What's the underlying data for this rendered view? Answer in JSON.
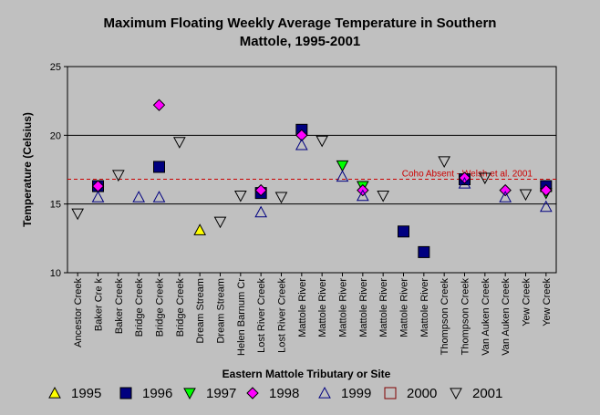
{
  "chart_data": {
    "type": "scatter",
    "title_lines": [
      "Maximum Floating Weekly Average Temperature in Southern",
      "Mattole, 1995-2001"
    ],
    "xlabel": "Eastern Mattole Tributary or Site",
    "ylabel": "Temperature (Celsius)",
    "ylim": [
      10,
      25
    ],
    "yticks": [
      10,
      15,
      20,
      25
    ],
    "grid": "horizontal",
    "legend_position": "bottom",
    "categories": [
      "Ancestor Creek",
      "Baker Cre   k",
      "Baker Creek",
      "Bridge Creek",
      "Bridge Creek",
      "Bridge Creek",
      "Dream Stream",
      "Dream Stream",
      "Helen Barnum Cr",
      "Lost River Creek",
      "Lost River Creek",
      "Mattole River",
      "Mattole River",
      "Mattole River",
      "Mattole River",
      "Mattole River",
      "Mattole River",
      "Mattole River",
      "Thompson Creek",
      "Thompson Creek",
      "Van Auken Creek",
      "Van Auken Creek",
      "Yew Creek",
      "Yew Creek"
    ],
    "reference_line": {
      "value": 16.8,
      "label": "Coho Absent - Welsh et al. 2001",
      "color": "#cc0000"
    },
    "series": [
      {
        "name": "1995",
        "marker": "triangle-up",
        "fill": "#ffff00",
        "points": [
          {
            "x": 6,
            "y": 13.1
          }
        ]
      },
      {
        "name": "1996",
        "marker": "square",
        "fill": "#000080",
        "points": [
          {
            "x": 1,
            "y": 16.3
          },
          {
            "x": 4,
            "y": 17.7
          },
          {
            "x": 9,
            "y": 15.8
          },
          {
            "x": 11,
            "y": 20.4
          },
          {
            "x": 16,
            "y": 13.0
          },
          {
            "x": 17,
            "y": 11.5
          },
          {
            "x": 19,
            "y": 16.8
          },
          {
            "x": 23,
            "y": 16.3
          }
        ]
      },
      {
        "name": "1997",
        "marker": "triangle-down",
        "fill": "#00ff00",
        "points": [
          {
            "x": 13,
            "y": 17.8
          },
          {
            "x": 14,
            "y": 16.3
          },
          {
            "x": 23,
            "y": 15.8
          }
        ]
      },
      {
        "name": "1998",
        "marker": "diamond",
        "fill": "#ff00ff",
        "points": [
          {
            "x": 1,
            "y": 16.3
          },
          {
            "x": 4,
            "y": 22.2
          },
          {
            "x": 9,
            "y": 16.0
          },
          {
            "x": 11,
            "y": 20.0
          },
          {
            "x": 14,
            "y": 16.0
          },
          {
            "x": 19,
            "y": 16.9
          },
          {
            "x": 21,
            "y": 16.0
          },
          {
            "x": 23,
            "y": 16.0
          }
        ]
      },
      {
        "name": "1999",
        "marker": "triangle-up-open",
        "fill": "none",
        "stroke": "#000080",
        "points": [
          {
            "x": 1,
            "y": 15.5
          },
          {
            "x": 3,
            "y": 15.5
          },
          {
            "x": 4,
            "y": 15.5
          },
          {
            "x": 9,
            "y": 14.4
          },
          {
            "x": 11,
            "y": 19.3
          },
          {
            "x": 13,
            "y": 17.0
          },
          {
            "x": 14,
            "y": 15.6
          },
          {
            "x": 19,
            "y": 16.5
          },
          {
            "x": 21,
            "y": 15.5
          },
          {
            "x": 23,
            "y": 14.8
          }
        ]
      },
      {
        "name": "2000",
        "marker": "square-open",
        "fill": "none",
        "stroke": "#800000",
        "points": []
      },
      {
        "name": "2001",
        "marker": "triangle-down-open",
        "fill": "none",
        "stroke": "#000000",
        "points": [
          {
            "x": 0,
            "y": 14.3
          },
          {
            "x": 2,
            "y": 17.1
          },
          {
            "x": 5,
            "y": 19.5
          },
          {
            "x": 7,
            "y": 13.7
          },
          {
            "x": 8,
            "y": 15.6
          },
          {
            "x": 10,
            "y": 15.5
          },
          {
            "x": 12,
            "y": 19.6
          },
          {
            "x": 15,
            "y": 15.6
          },
          {
            "x": 18,
            "y": 18.1
          },
          {
            "x": 20,
            "y": 16.9
          },
          {
            "x": 22,
            "y": 15.7
          }
        ]
      }
    ]
  }
}
